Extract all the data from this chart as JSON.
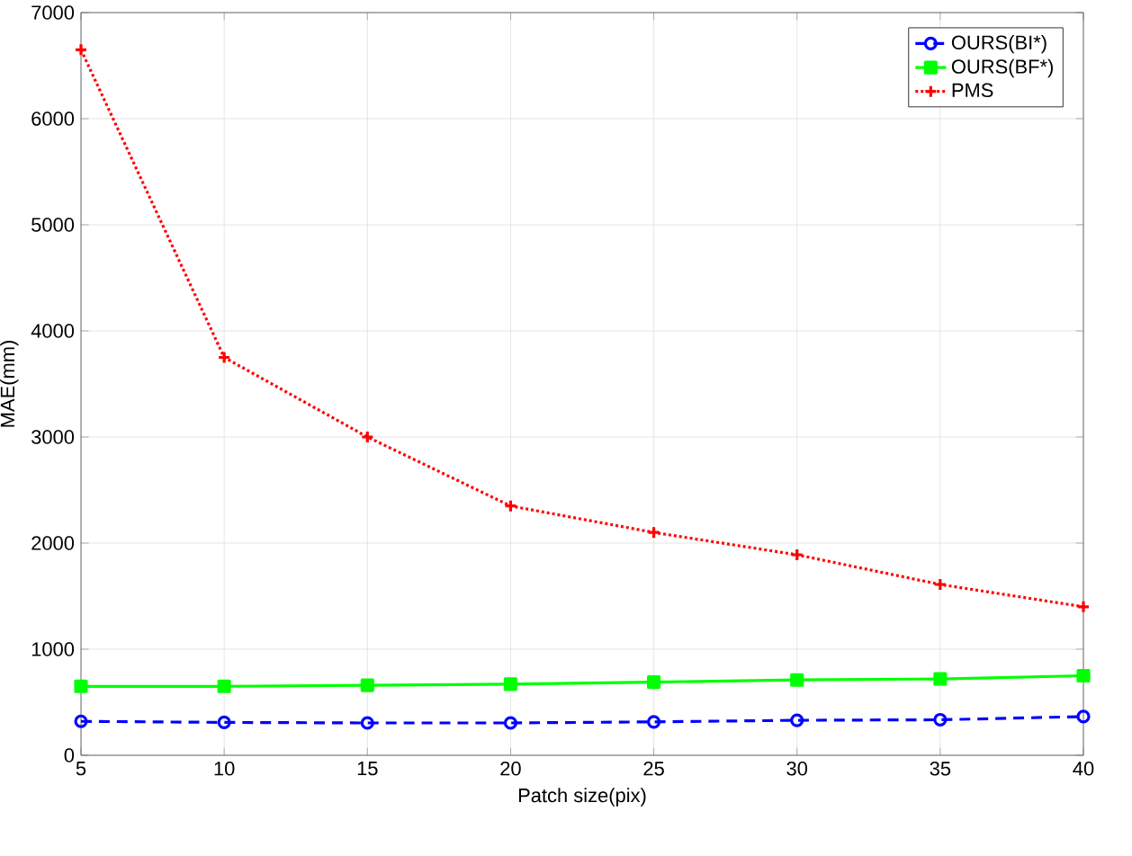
{
  "chart_data": {
    "type": "line",
    "xlabel": "Patch size(pix)",
    "ylabel": "MAE(mm)",
    "x": [
      5,
      10,
      15,
      20,
      25,
      30,
      35,
      40
    ],
    "xlim": [
      5,
      40
    ],
    "ylim": [
      0,
      7000
    ],
    "xticks": [
      5,
      10,
      15,
      20,
      25,
      30,
      35,
      40
    ],
    "yticks": [
      0,
      1000,
      2000,
      3000,
      4000,
      5000,
      6000,
      7000
    ],
    "grid": true,
    "legend": "top right",
    "series": [
      {
        "name": "OURS(BI*)",
        "color": "#0000ff",
        "marker": "circle",
        "line_style": "dashed",
        "values": [
          320,
          310,
          305,
          305,
          315,
          330,
          335,
          365
        ]
      },
      {
        "name": "OURS(BF*)",
        "color": "#00ff00",
        "marker": "square",
        "line_style": "solid",
        "values": [
          650,
          650,
          660,
          670,
          690,
          710,
          720,
          750
        ]
      },
      {
        "name": "PMS",
        "color": "#ff0000",
        "marker": "cross",
        "line_style": "dotted",
        "values": [
          6650,
          3750,
          3000,
          2350,
          2100,
          1890,
          1610,
          1400
        ]
      }
    ]
  }
}
